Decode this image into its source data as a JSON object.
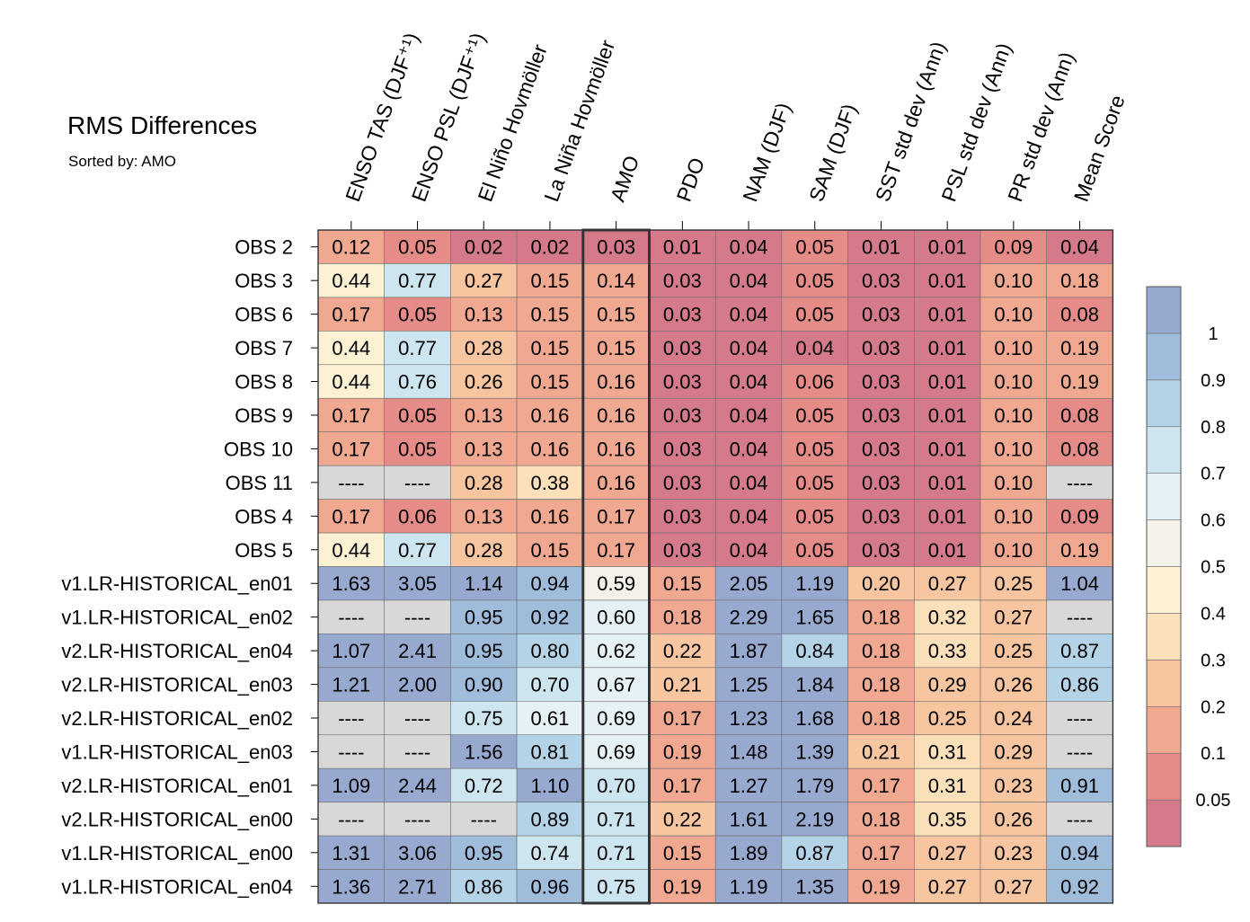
{
  "chart_data": {
    "type": "heatmap",
    "title": "RMS Differences",
    "subtitle": "Sorted by: AMO",
    "columns": [
      "ENSO TAS (DJF⁺¹)",
      "ENSO PSL (DJF⁺¹)",
      "El Niño Hovmöller",
      "La Niña Hovmöller",
      "AMO",
      "PDO",
      "NAM (DJF)",
      "SAM (DJF)",
      "SST std dev (Ann)",
      "PSL std dev (Ann)",
      "PR std dev (Ann)",
      "Mean Score"
    ],
    "highlight_column": "AMO",
    "missing_label": "----",
    "rows": [
      {
        "name": "OBS 2",
        "values": [
          0.12,
          0.05,
          0.02,
          0.02,
          0.03,
          0.01,
          0.04,
          0.05,
          0.01,
          0.01,
          0.09,
          0.04
        ]
      },
      {
        "name": "OBS 3",
        "values": [
          0.44,
          0.77,
          0.27,
          0.15,
          0.14,
          0.03,
          0.04,
          0.05,
          0.03,
          0.01,
          0.1,
          0.18
        ]
      },
      {
        "name": "OBS 6",
        "values": [
          0.17,
          0.05,
          0.13,
          0.15,
          0.15,
          0.03,
          0.04,
          0.05,
          0.03,
          0.01,
          0.1,
          0.08
        ]
      },
      {
        "name": "OBS 7",
        "values": [
          0.44,
          0.77,
          0.28,
          0.15,
          0.15,
          0.03,
          0.04,
          0.04,
          0.03,
          0.01,
          0.1,
          0.19
        ]
      },
      {
        "name": "OBS 8",
        "values": [
          0.44,
          0.76,
          0.26,
          0.15,
          0.16,
          0.03,
          0.04,
          0.06,
          0.03,
          0.01,
          0.1,
          0.19
        ]
      },
      {
        "name": "OBS 9",
        "values": [
          0.17,
          0.05,
          0.13,
          0.16,
          0.16,
          0.03,
          0.04,
          0.05,
          0.03,
          0.01,
          0.1,
          0.08
        ]
      },
      {
        "name": "OBS 10",
        "values": [
          0.17,
          0.05,
          0.13,
          0.16,
          0.16,
          0.03,
          0.04,
          0.05,
          0.03,
          0.01,
          0.1,
          0.08
        ]
      },
      {
        "name": "OBS 11",
        "values": [
          null,
          null,
          0.28,
          0.38,
          0.16,
          0.03,
          0.04,
          0.05,
          0.03,
          0.01,
          0.1,
          null
        ]
      },
      {
        "name": "OBS 4",
        "values": [
          0.17,
          0.06,
          0.13,
          0.16,
          0.17,
          0.03,
          0.04,
          0.05,
          0.03,
          0.01,
          0.1,
          0.09
        ]
      },
      {
        "name": "OBS 5",
        "values": [
          0.44,
          0.77,
          0.28,
          0.15,
          0.17,
          0.03,
          0.04,
          0.05,
          0.03,
          0.01,
          0.1,
          0.19
        ]
      },
      {
        "name": "v1.LR-HISTORICAL_en01",
        "values": [
          1.63,
          3.05,
          1.14,
          0.94,
          0.59,
          0.15,
          2.05,
          1.19,
          0.2,
          0.27,
          0.25,
          1.04
        ]
      },
      {
        "name": "v1.LR-HISTORICAL_en02",
        "values": [
          null,
          null,
          0.95,
          0.92,
          0.6,
          0.18,
          2.29,
          1.65,
          0.18,
          0.32,
          0.27,
          null
        ]
      },
      {
        "name": "v2.LR-HISTORICAL_en04",
        "values": [
          1.07,
          2.41,
          0.95,
          0.8,
          0.62,
          0.22,
          1.87,
          0.84,
          0.18,
          0.33,
          0.25,
          0.87
        ]
      },
      {
        "name": "v2.LR-HISTORICAL_en03",
        "values": [
          1.21,
          2.0,
          0.9,
          0.7,
          0.67,
          0.21,
          1.25,
          1.84,
          0.18,
          0.29,
          0.26,
          0.86
        ]
      },
      {
        "name": "v2.LR-HISTORICAL_en02",
        "values": [
          null,
          null,
          0.75,
          0.61,
          0.69,
          0.17,
          1.23,
          1.68,
          0.18,
          0.25,
          0.24,
          null
        ]
      },
      {
        "name": "v1.LR-HISTORICAL_en03",
        "values": [
          null,
          null,
          1.56,
          0.81,
          0.69,
          0.19,
          1.48,
          1.39,
          0.21,
          0.31,
          0.29,
          null
        ]
      },
      {
        "name": "v2.LR-HISTORICAL_en01",
        "values": [
          1.09,
          2.44,
          0.72,
          1.1,
          0.7,
          0.17,
          1.27,
          1.79,
          0.17,
          0.31,
          0.23,
          0.91
        ]
      },
      {
        "name": "v2.LR-HISTORICAL_en00",
        "values": [
          null,
          null,
          null,
          0.89,
          0.71,
          0.22,
          1.61,
          2.19,
          0.18,
          0.35,
          0.26,
          null
        ]
      },
      {
        "name": "v1.LR-HISTORICAL_en00",
        "values": [
          1.31,
          3.06,
          0.95,
          0.74,
          0.71,
          0.15,
          1.89,
          0.87,
          0.17,
          0.27,
          0.23,
          0.94
        ]
      },
      {
        "name": "v1.LR-HISTORICAL_en04",
        "values": [
          1.36,
          2.71,
          0.86,
          0.96,
          0.75,
          0.19,
          1.19,
          1.35,
          0.19,
          0.27,
          0.27,
          0.92
        ]
      }
    ],
    "colorbar": {
      "levels": [
        0.05,
        0.1,
        0.2,
        0.3,
        0.4,
        0.5,
        0.6,
        0.7,
        0.8,
        0.9,
        1
      ],
      "colors": [
        "#d47a8a",
        "#e58c88",
        "#f1a891",
        "#f7c5a0",
        "#fbe0b9",
        "#fdf1d3",
        "#f4f1e8",
        "#e6f1f5",
        "#cde5ef",
        "#b4d3e6",
        "#a0bcdb",
        "#98a9d0"
      ]
    },
    "missing_color": "#d8d8d8"
  }
}
